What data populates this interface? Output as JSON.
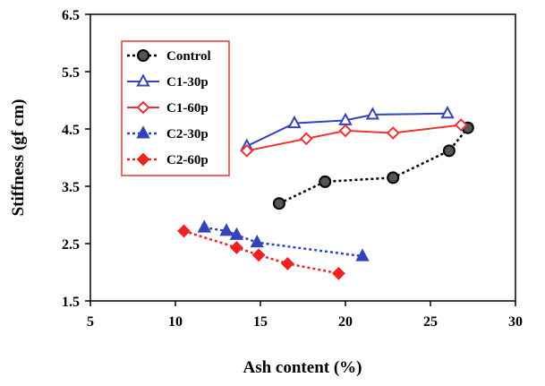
{
  "chart_data": {
    "type": "line",
    "title": "",
    "xlabel": "Ash content (%)",
    "ylabel": "Stiffness (gf cm)",
    "xlim": [
      5,
      30
    ],
    "ylim": [
      1.5,
      6.5
    ],
    "xticks": [
      "5",
      "10",
      "15",
      "20",
      "25",
      "30"
    ],
    "yticks": [
      "1.5",
      "2.5",
      "3.5",
      "4.5",
      "5.5",
      "6.5"
    ],
    "grid": false,
    "legend_position": "top-left",
    "series": [
      {
        "name": "Control",
        "color": "#000000",
        "marker": "circle",
        "marker_fill": "#555555",
        "line_style": "dotted",
        "points": [
          [
            16.1,
            3.2
          ],
          [
            18.8,
            3.58
          ],
          [
            22.8,
            3.65
          ],
          [
            26.1,
            4.12
          ],
          [
            27.2,
            4.52
          ]
        ]
      },
      {
        "name": "C1-30p",
        "color": "#3344bb",
        "marker": "triangle",
        "marker_fill": "#ffffff",
        "line_style": "solid",
        "points": [
          [
            14.2,
            4.2
          ],
          [
            17.0,
            4.6
          ],
          [
            20.0,
            4.65
          ],
          [
            21.6,
            4.75
          ],
          [
            26.0,
            4.77
          ]
        ]
      },
      {
        "name": "C1-60p",
        "color": "#ee3333",
        "marker": "diamond",
        "marker_fill": "#ffffff",
        "line_style": "solid",
        "points": [
          [
            14.2,
            4.12
          ],
          [
            17.7,
            4.33
          ],
          [
            20.0,
            4.47
          ],
          [
            22.8,
            4.43
          ],
          [
            26.8,
            4.57
          ]
        ]
      },
      {
        "name": "C2-30p",
        "color": "#3344bb",
        "marker": "triangle",
        "marker_fill": "#3344bb",
        "line_style": "dotted",
        "points": [
          [
            11.7,
            2.78
          ],
          [
            13.0,
            2.72
          ],
          [
            13.6,
            2.65
          ],
          [
            14.8,
            2.52
          ],
          [
            21.0,
            2.28
          ]
        ]
      },
      {
        "name": "C2-60p",
        "color": "#ee2222",
        "marker": "diamond",
        "marker_fill": "#ee2222",
        "line_style": "dotted",
        "points": [
          [
            10.5,
            2.72
          ],
          [
            13.6,
            2.43
          ],
          [
            14.9,
            2.3
          ],
          [
            16.6,
            2.15
          ],
          [
            19.6,
            1.98
          ]
        ]
      }
    ]
  }
}
